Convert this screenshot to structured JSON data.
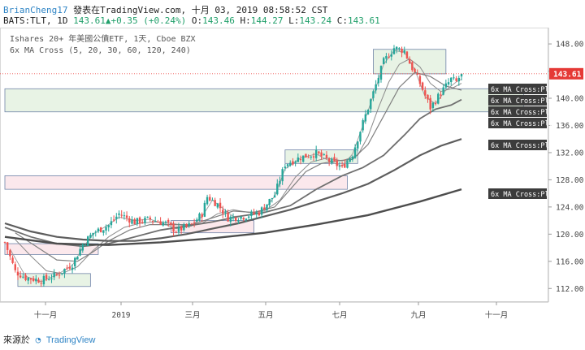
{
  "header": {
    "user": "BrianCheng17",
    "published_text": "發表在TradingView.com, 十月 03, 2019 08:58:52 CST",
    "symbol": "BATS:TLT, 1D",
    "last": "143.61",
    "change": "+0.35 (+0.24%)",
    "open_label": "O:",
    "open": "143.46",
    "high_label": "H:",
    "high": "144.27",
    "low_label": "L:",
    "low": "143.24",
    "close_label": "C:",
    "close": "143.61"
  },
  "legend": {
    "title": "Ishares 20+ 年美國公債ETF, 1天, Cboe BZX",
    "indicator": "6x MA Cross (5, 20, 30, 60, 120, 240)"
  },
  "price_tag": "143.61",
  "ma_labels": [
    "6x MA Cross:Plot",
    "6x MA Cross:Plot",
    "6x MA Cross:Plot",
    "6x MA Cross:Plot",
    "6x MA Cross:Plot",
    "6x MA Cross:Plot"
  ],
  "footer": {
    "source_label": "來源於",
    "brand": "TradingView"
  },
  "colors": {
    "up": "#26a69a",
    "down": "#ef5350",
    "box_green": "#e6f2e2",
    "box_red": "#fbe5ea",
    "box_border": "#6f83a8"
  },
  "chart_data": {
    "type": "candlestick",
    "title": "Ishares 20+ 年美國公債ETF, 1天, Cboe BZX",
    "y_axis_ticks": [
      112.0,
      116.0,
      120.0,
      124.0,
      128.0,
      132.0,
      136.0,
      140.0,
      144.0,
      148.0
    ],
    "ylim": [
      110.0,
      150.4
    ],
    "x_axis_ticks": [
      "十一月",
      "2019",
      "三月",
      "五月",
      "七月",
      "九月",
      "十一月"
    ],
    "last_price": 143.61,
    "close_path": [
      [
        0,
        118.8
      ],
      [
        4,
        114.5
      ],
      [
        8,
        113.6
      ],
      [
        14,
        113.2
      ],
      [
        20,
        114.0
      ],
      [
        26,
        115.6
      ],
      [
        30,
        118.5
      ],
      [
        34,
        120.2
      ],
      [
        40,
        121.3
      ],
      [
        44,
        123.0
      ],
      [
        50,
        121.8
      ],
      [
        56,
        122.2
      ],
      [
        62,
        121.6
      ],
      [
        66,
        120.5
      ],
      [
        72,
        121.4
      ],
      [
        76,
        123.0
      ],
      [
        78,
        125.5
      ],
      [
        82,
        124.4
      ],
      [
        86,
        122.4
      ],
      [
        92,
        122.6
      ],
      [
        98,
        123.2
      ],
      [
        104,
        125.8
      ],
      [
        108,
        130.3
      ],
      [
        114,
        131.3
      ],
      [
        120,
        131.9
      ],
      [
        126,
        130.6
      ],
      [
        130,
        129.8
      ],
      [
        134,
        131.8
      ],
      [
        138,
        136.4
      ],
      [
        142,
        140.8
      ],
      [
        146,
        145.4
      ],
      [
        150,
        147.4
      ],
      [
        154,
        147.0
      ],
      [
        156,
        145.2
      ],
      [
        160,
        142.2
      ],
      [
        164,
        138.6
      ],
      [
        168,
        140.8
      ],
      [
        172,
        142.8
      ],
      [
        174,
        142.4
      ],
      [
        176,
        143.61
      ]
    ],
    "ma_labels_text": [
      "6x MA Cross:Plot"
    ],
    "ma_lines": {
      "ma5": [
        [
          2,
          117.8
        ],
        [
          8,
          113.8
        ],
        [
          14,
          113.0
        ],
        [
          20,
          114.0
        ],
        [
          26,
          115.4
        ],
        [
          30,
          118.0
        ],
        [
          34,
          120.0
        ],
        [
          40,
          121.4
        ],
        [
          44,
          122.5
        ],
        [
          50,
          122.0
        ],
        [
          56,
          122.2
        ],
        [
          62,
          121.4
        ],
        [
          66,
          120.8
        ],
        [
          72,
          121.2
        ],
        [
          76,
          122.6
        ],
        [
          80,
          125.0
        ],
        [
          84,
          123.8
        ],
        [
          88,
          122.6
        ],
        [
          94,
          122.8
        ],
        [
          100,
          123.6
        ],
        [
          104,
          125.6
        ],
        [
          108,
          129.6
        ],
        [
          114,
          131.2
        ],
        [
          120,
          131.8
        ],
        [
          126,
          130.6
        ],
        [
          130,
          130.0
        ],
        [
          134,
          131.8
        ],
        [
          138,
          136.0
        ],
        [
          142,
          140.4
        ],
        [
          146,
          145.0
        ],
        [
          150,
          147.0
        ],
        [
          154,
          146.8
        ],
        [
          158,
          144.2
        ],
        [
          162,
          140.2
        ],
        [
          166,
          139.2
        ],
        [
          170,
          141.2
        ],
        [
          174,
          142.4
        ],
        [
          176,
          142.8
        ]
      ],
      "ma20": [
        [
          4,
          119.2
        ],
        [
          10,
          116.8
        ],
        [
          16,
          114.6
        ],
        [
          22,
          114.2
        ],
        [
          28,
          115.2
        ],
        [
          34,
          117.6
        ],
        [
          40,
          119.6
        ],
        [
          46,
          121.0
        ],
        [
          52,
          121.6
        ],
        [
          58,
          121.8
        ],
        [
          64,
          121.6
        ],
        [
          70,
          121.2
        ],
        [
          76,
          121.6
        ],
        [
          82,
          123.0
        ],
        [
          88,
          123.6
        ],
        [
          94,
          123.2
        ],
        [
          100,
          123.4
        ],
        [
          106,
          125.0
        ],
        [
          112,
          128.4
        ],
        [
          118,
          130.6
        ],
        [
          124,
          131.2
        ],
        [
          130,
          130.8
        ],
        [
          136,
          131.6
        ],
        [
          140,
          134.4
        ],
        [
          144,
          138.6
        ],
        [
          148,
          142.4
        ],
        [
          152,
          145.0
        ],
        [
          156,
          145.8
        ],
        [
          160,
          144.6
        ],
        [
          164,
          142.2
        ],
        [
          168,
          141.0
        ],
        [
          172,
          141.4
        ],
        [
          176,
          142.2
        ]
      ],
      "ma30": [
        [
          4,
          120.2
        ],
        [
          12,
          118.2
        ],
        [
          20,
          116.2
        ],
        [
          28,
          116.0
        ],
        [
          34,
          117.4
        ],
        [
          40,
          119.0
        ],
        [
          48,
          120.6
        ],
        [
          56,
          121.4
        ],
        [
          64,
          121.4
        ],
        [
          72,
          121.4
        ],
        [
          80,
          122.4
        ],
        [
          88,
          123.4
        ],
        [
          96,
          123.2
        ],
        [
          104,
          124.0
        ],
        [
          110,
          126.6
        ],
        [
          116,
          129.2
        ],
        [
          122,
          130.4
        ],
        [
          128,
          130.8
        ],
        [
          134,
          131.0
        ],
        [
          140,
          133.2
        ],
        [
          146,
          137.4
        ],
        [
          152,
          141.6
        ],
        [
          158,
          143.8
        ],
        [
          164,
          143.2
        ],
        [
          170,
          141.8
        ],
        [
          176,
          141.2
        ]
      ],
      "ma60": [
        [
          0,
          121.0
        ],
        [
          10,
          119.6
        ],
        [
          20,
          118.6
        ],
        [
          30,
          118.2
        ],
        [
          40,
          118.6
        ],
        [
          50,
          119.6
        ],
        [
          60,
          120.6
        ],
        [
          70,
          121.2
        ],
        [
          80,
          121.8
        ],
        [
          90,
          122.6
        ],
        [
          100,
          123.2
        ],
        [
          110,
          124.2
        ],
        [
          120,
          126.6
        ],
        [
          130,
          128.6
        ],
        [
          138,
          129.8
        ],
        [
          146,
          131.6
        ],
        [
          154,
          134.6
        ],
        [
          160,
          137.0
        ],
        [
          166,
          138.4
        ],
        [
          172,
          139.0
        ],
        [
          176,
          139.8
        ]
      ],
      "ma120": [
        [
          0,
          121.6
        ],
        [
          10,
          120.4
        ],
        [
          20,
          119.6
        ],
        [
          30,
          119.2
        ],
        [
          40,
          119.0
        ],
        [
          50,
          119.0
        ],
        [
          60,
          119.4
        ],
        [
          70,
          120.0
        ],
        [
          80,
          120.8
        ],
        [
          90,
          121.6
        ],
        [
          100,
          122.6
        ],
        [
          110,
          123.6
        ],
        [
          120,
          124.8
        ],
        [
          130,
          126.0
        ],
        [
          140,
          127.4
        ],
        [
          150,
          129.4
        ],
        [
          160,
          131.6
        ],
        [
          168,
          133.0
        ],
        [
          176,
          134.0
        ]
      ],
      "ma240": [
        [
          0,
          119.6
        ],
        [
          20,
          118.6
        ],
        [
          40,
          118.4
        ],
        [
          60,
          118.8
        ],
        [
          80,
          119.4
        ],
        [
          100,
          120.2
        ],
        [
          120,
          121.4
        ],
        [
          140,
          122.8
        ],
        [
          160,
          124.8
        ],
        [
          176,
          126.6
        ]
      ]
    },
    "zones": [
      {
        "kind": "support",
        "from_bar": 5,
        "to_bar": 33,
        "y_low": 112.3,
        "y_high": 114.2
      },
      {
        "kind": "support",
        "from_bar": 108,
        "to_bar": 136,
        "y_low": 130.4,
        "y_high": 132.4
      },
      {
        "kind": "support",
        "from_bar": 142,
        "to_bar": 170,
        "y_low": 143.6,
        "y_high": 147.2
      },
      {
        "kind": "support",
        "from_bar": 0,
        "to_bar": 200,
        "y_low": 138.0,
        "y_high": 141.4
      },
      {
        "kind": "resistance",
        "from_bar": 0,
        "to_bar": 132,
        "y_low": 126.6,
        "y_high": 128.6
      },
      {
        "kind": "resistance",
        "from_bar": 64,
        "to_bar": 96,
        "y_low": 120.2,
        "y_high": 122.0
      },
      {
        "kind": "resistance",
        "from_bar": 0,
        "to_bar": 36,
        "y_low": 117.0,
        "y_high": 118.6
      }
    ]
  }
}
